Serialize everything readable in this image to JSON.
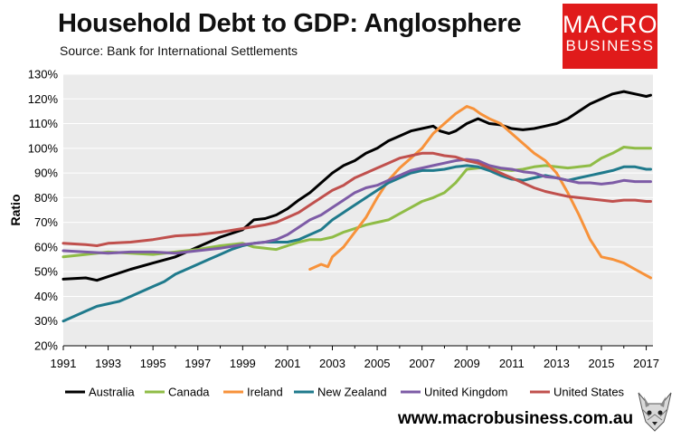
{
  "header": {
    "title": "Household Debt to GDP: Anglosphere",
    "subtitle": "Source: Bank for International Settlements"
  },
  "logo": {
    "line1": "MACRO",
    "line2": "BUSINESS"
  },
  "footer": {
    "url": "www.macrobusiness.com.au"
  },
  "chart_data": {
    "type": "line",
    "title": "Household Debt to GDP: Anglosphere",
    "xlabel": "",
    "ylabel": "Ratio",
    "xlim": [
      1991,
      2017.3
    ],
    "ylim": [
      20,
      130
    ],
    "x_ticks": [
      1991,
      1993,
      1995,
      1997,
      1999,
      2001,
      2003,
      2005,
      2007,
      2009,
      2011,
      2013,
      2015,
      2017
    ],
    "x_tick_labels": [
      "1991",
      "1993",
      "1995",
      "1997",
      "1999",
      "2001",
      "2003",
      "2005",
      "2007",
      "2009",
      "2011",
      "2013",
      "2015",
      "2017"
    ],
    "y_ticks": [
      20,
      30,
      40,
      50,
      60,
      70,
      80,
      90,
      100,
      110,
      120,
      130
    ],
    "y_tick_labels": [
      "20%",
      "30%",
      "40%",
      "50%",
      "60%",
      "70%",
      "80%",
      "90%",
      "100%",
      "110%",
      "120%",
      "130%"
    ],
    "legend_position": "bottom",
    "series": [
      {
        "name": "Australia",
        "color": "#000000",
        "points": [
          [
            1991,
            47
          ],
          [
            1992,
            47.5
          ],
          [
            1992.5,
            46.5
          ],
          [
            1993,
            48
          ],
          [
            1994,
            51
          ],
          [
            1995,
            53.5
          ],
          [
            1996,
            56
          ],
          [
            1996.5,
            58
          ],
          [
            1997,
            60
          ],
          [
            1998,
            64
          ],
          [
            1999,
            67
          ],
          [
            1999.5,
            71
          ],
          [
            2000,
            71.5
          ],
          [
            2000.5,
            73
          ],
          [
            2001,
            75.5
          ],
          [
            2001.5,
            79
          ],
          [
            2002,
            82
          ],
          [
            2002.5,
            86
          ],
          [
            2003,
            90
          ],
          [
            2003.5,
            93
          ],
          [
            2004,
            95
          ],
          [
            2004.5,
            98
          ],
          [
            2005,
            100
          ],
          [
            2005.5,
            103
          ],
          [
            2006,
            105
          ],
          [
            2006.5,
            107
          ],
          [
            2007,
            108
          ],
          [
            2007.5,
            109
          ],
          [
            2007.8,
            107
          ],
          [
            2008.2,
            106
          ],
          [
            2008.5,
            107
          ],
          [
            2009,
            110
          ],
          [
            2009.5,
            112
          ],
          [
            2010,
            110
          ],
          [
            2010.5,
            109.5
          ],
          [
            2011,
            108
          ],
          [
            2011.5,
            107.5
          ],
          [
            2012,
            108
          ],
          [
            2012.5,
            109
          ],
          [
            2013,
            110
          ],
          [
            2013.5,
            112
          ],
          [
            2014,
            115
          ],
          [
            2014.5,
            118
          ],
          [
            2015,
            120
          ],
          [
            2015.5,
            122
          ],
          [
            2016,
            123
          ],
          [
            2016.5,
            122
          ],
          [
            2017,
            121
          ],
          [
            2017.2,
            121.5
          ]
        ]
      },
      {
        "name": "Canada",
        "color": "#8fbc46",
        "points": [
          [
            1991,
            56
          ],
          [
            1992,
            57
          ],
          [
            1993,
            58
          ],
          [
            1994,
            57.5
          ],
          [
            1995,
            57
          ],
          [
            1996,
            58
          ],
          [
            1997,
            59
          ],
          [
            1998,
            60.5
          ],
          [
            1999,
            61.5
          ],
          [
            1999.5,
            60
          ],
          [
            2000,
            59.5
          ],
          [
            2000.5,
            59
          ],
          [
            2001,
            60.5
          ],
          [
            2001.5,
            62
          ],
          [
            2002,
            63
          ],
          [
            2002.5,
            63
          ],
          [
            2003,
            64
          ],
          [
            2003.5,
            66
          ],
          [
            2004,
            67.5
          ],
          [
            2004.5,
            69
          ],
          [
            2005,
            70
          ],
          [
            2005.5,
            71
          ],
          [
            2006,
            73.5
          ],
          [
            2006.5,
            76
          ],
          [
            2007,
            78.5
          ],
          [
            2007.5,
            80
          ],
          [
            2008,
            82
          ],
          [
            2008.5,
            86
          ],
          [
            2009,
            91.5
          ],
          [
            2009.5,
            92
          ],
          [
            2010,
            92.5
          ],
          [
            2010.5,
            91.5
          ],
          [
            2011,
            91
          ],
          [
            2011.5,
            91.5
          ],
          [
            2012,
            92.5
          ],
          [
            2012.5,
            93
          ],
          [
            2013,
            92.5
          ],
          [
            2013.5,
            92
          ],
          [
            2014,
            92.5
          ],
          [
            2014.5,
            93
          ],
          [
            2015,
            96
          ],
          [
            2015.5,
            98
          ],
          [
            2016,
            100.5
          ],
          [
            2016.5,
            100
          ],
          [
            2017,
            100
          ],
          [
            2017.2,
            100
          ]
        ]
      },
      {
        "name": "Ireland",
        "color": "#f7923a",
        "points": [
          [
            2002,
            51
          ],
          [
            2002.5,
            53
          ],
          [
            2002.8,
            52
          ],
          [
            2003,
            56
          ],
          [
            2003.5,
            60
          ],
          [
            2004,
            66
          ],
          [
            2004.5,
            72
          ],
          [
            2005,
            80
          ],
          [
            2005.5,
            87
          ],
          [
            2006,
            92
          ],
          [
            2006.5,
            96
          ],
          [
            2007,
            100
          ],
          [
            2007.5,
            106
          ],
          [
            2008,
            110
          ],
          [
            2008.5,
            114
          ],
          [
            2009,
            117
          ],
          [
            2009.3,
            116
          ],
          [
            2009.6,
            114
          ],
          [
            2010,
            112
          ],
          [
            2010.5,
            110
          ],
          [
            2011,
            106
          ],
          [
            2011.5,
            102
          ],
          [
            2012,
            98
          ],
          [
            2012.5,
            95
          ],
          [
            2013,
            90
          ],
          [
            2013.5,
            82
          ],
          [
            2014,
            73
          ],
          [
            2014.5,
            63
          ],
          [
            2015,
            56
          ],
          [
            2015.5,
            55
          ],
          [
            2016,
            53.5
          ],
          [
            2016.5,
            51
          ],
          [
            2017,
            48.5
          ],
          [
            2017.2,
            47.5
          ]
        ]
      },
      {
        "name": "New Zealand",
        "color": "#1f7a8c",
        "points": [
          [
            1991,
            30
          ],
          [
            1991.5,
            32
          ],
          [
            1992,
            34
          ],
          [
            1992.5,
            36
          ],
          [
            1993,
            37
          ],
          [
            1993.5,
            38
          ],
          [
            1994,
            40
          ],
          [
            1994.5,
            42
          ],
          [
            1995,
            44
          ],
          [
            1995.5,
            46
          ],
          [
            1996,
            49
          ],
          [
            1996.5,
            51
          ],
          [
            1997,
            53
          ],
          [
            1997.5,
            55
          ],
          [
            1998,
            57
          ],
          [
            1998.5,
            59
          ],
          [
            1999,
            60.5
          ],
          [
            1999.5,
            61.5
          ],
          [
            2000,
            62
          ],
          [
            2001,
            62
          ],
          [
            2001.5,
            63
          ],
          [
            2002,
            65
          ],
          [
            2002.5,
            67
          ],
          [
            2003,
            71
          ],
          [
            2003.5,
            74
          ],
          [
            2004,
            77
          ],
          [
            2004.5,
            80
          ],
          [
            2005,
            83
          ],
          [
            2005.5,
            86
          ],
          [
            2006,
            88
          ],
          [
            2006.5,
            90
          ],
          [
            2007,
            91
          ],
          [
            2007.5,
            91
          ],
          [
            2008,
            91.5
          ],
          [
            2008.5,
            92.5
          ],
          [
            2009,
            93
          ],
          [
            2009.5,
            92.5
          ],
          [
            2010,
            91
          ],
          [
            2010.5,
            89
          ],
          [
            2011,
            87.5
          ],
          [
            2011.5,
            87
          ],
          [
            2012,
            88
          ],
          [
            2012.5,
            89
          ],
          [
            2013,
            88
          ],
          [
            2013.5,
            87
          ],
          [
            2014,
            88
          ],
          [
            2014.5,
            89
          ],
          [
            2015,
            90
          ],
          [
            2015.5,
            91
          ],
          [
            2016,
            92.5
          ],
          [
            2016.5,
            92.5
          ],
          [
            2017,
            91.5
          ],
          [
            2017.2,
            91.5
          ]
        ]
      },
      {
        "name": "United Kingdom",
        "color": "#7d5ba6",
        "points": [
          [
            1991,
            58.5
          ],
          [
            1992,
            58
          ],
          [
            1993,
            57.5
          ],
          [
            1994,
            58
          ],
          [
            1995,
            58
          ],
          [
            1996,
            57.5
          ],
          [
            1997,
            58.5
          ],
          [
            1998,
            59.5
          ],
          [
            1999,
            61
          ],
          [
            2000,
            62
          ],
          [
            2000.5,
            63
          ],
          [
            2001,
            65
          ],
          [
            2001.5,
            68
          ],
          [
            2002,
            71
          ],
          [
            2002.5,
            73
          ],
          [
            2003,
            76
          ],
          [
            2003.5,
            79
          ],
          [
            2004,
            82
          ],
          [
            2004.5,
            84
          ],
          [
            2005,
            85
          ],
          [
            2005.5,
            87
          ],
          [
            2006,
            89
          ],
          [
            2006.5,
            91
          ],
          [
            2007,
            92
          ],
          [
            2007.5,
            93
          ],
          [
            2008,
            94
          ],
          [
            2008.5,
            95
          ],
          [
            2009,
            95.5
          ],
          [
            2009.5,
            95
          ],
          [
            2010,
            93
          ],
          [
            2010.5,
            92
          ],
          [
            2011,
            91.5
          ],
          [
            2011.5,
            90.5
          ],
          [
            2012,
            90
          ],
          [
            2012.5,
            88.5
          ],
          [
            2013,
            88
          ],
          [
            2013.5,
            87
          ],
          [
            2014,
            86
          ],
          [
            2014.5,
            86
          ],
          [
            2015,
            85.5
          ],
          [
            2015.5,
            86
          ],
          [
            2016,
            87
          ],
          [
            2016.5,
            86.5
          ],
          [
            2017,
            86.5
          ],
          [
            2017.2,
            86.5
          ]
        ]
      },
      {
        "name": "United States",
        "color": "#c0504d",
        "points": [
          [
            1991,
            61.5
          ],
          [
            1992,
            61
          ],
          [
            1992.5,
            60.5
          ],
          [
            1993,
            61.5
          ],
          [
            1994,
            62
          ],
          [
            1995,
            63
          ],
          [
            1996,
            64.5
          ],
          [
            1997,
            65
          ],
          [
            1998,
            66
          ],
          [
            1999,
            67.5
          ],
          [
            2000,
            69
          ],
          [
            2000.5,
            70
          ],
          [
            2001,
            72
          ],
          [
            2001.5,
            74
          ],
          [
            2002,
            77
          ],
          [
            2002.5,
            80
          ],
          [
            2003,
            83
          ],
          [
            2003.5,
            85
          ],
          [
            2004,
            88
          ],
          [
            2004.5,
            90
          ],
          [
            2005,
            92
          ],
          [
            2005.5,
            94
          ],
          [
            2006,
            96
          ],
          [
            2006.5,
            97
          ],
          [
            2007,
            98
          ],
          [
            2007.5,
            98
          ],
          [
            2008,
            97
          ],
          [
            2008.5,
            96.5
          ],
          [
            2009,
            95
          ],
          [
            2009.5,
            94
          ],
          [
            2010,
            92
          ],
          [
            2010.5,
            90
          ],
          [
            2011,
            88
          ],
          [
            2011.5,
            86
          ],
          [
            2012,
            84
          ],
          [
            2012.5,
            82.5
          ],
          [
            2013,
            81.5
          ],
          [
            2013.5,
            80.5
          ],
          [
            2014,
            80
          ],
          [
            2014.5,
            79.5
          ],
          [
            2015,
            79
          ],
          [
            2015.5,
            78.5
          ],
          [
            2016,
            79
          ],
          [
            2016.5,
            79
          ],
          [
            2017,
            78.5
          ],
          [
            2017.2,
            78.5
          ]
        ]
      }
    ]
  }
}
